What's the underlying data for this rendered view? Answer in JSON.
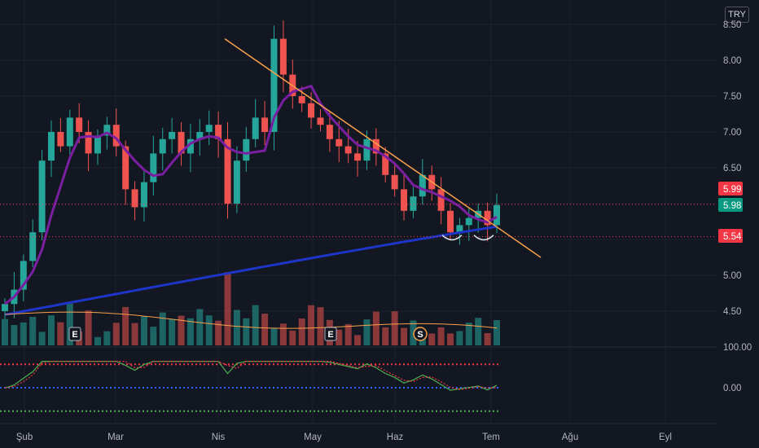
{
  "currency": "TRY",
  "chart_data": {
    "type": "candlestick",
    "y_ticks": [
      "8.50",
      "8.00",
      "7.50",
      "7.00",
      "6.50",
      "6.00",
      "5.50",
      "5.00",
      "4.50"
    ],
    "oscillator_ticks": [
      "100.00",
      "0.00"
    ],
    "x_ticks": [
      "Şub",
      "Mar",
      "Nis",
      "May",
      "Haz",
      "Tem",
      "Ağu",
      "Eyl"
    ],
    "price_tags": [
      {
        "label": "5.99",
        "color": "#f23645"
      },
      {
        "label": "5.98",
        "color": "#089981"
      },
      {
        "label": "5.54",
        "color": "#f23645"
      }
    ],
    "markers": [
      {
        "label": "E",
        "kind": "earnings",
        "month": "Şub"
      },
      {
        "label": "E",
        "kind": "earnings",
        "month": "May"
      },
      {
        "label": "S",
        "kind": "split",
        "month": "Haz"
      }
    ],
    "trendline": {
      "from": {
        "month": "Nis",
        "price": 8.3
      },
      "to": {
        "month": "Tem",
        "price": 5.25
      },
      "color": "#f7a04b"
    },
    "support_line": {
      "price": 5.54
    },
    "resistance_line": {
      "price": 5.99
    },
    "ma_fast_color": "#7b1fa2",
    "ma_slow_color": "#1e35c8",
    "oscillator_levels": [
      80,
      0,
      -80
    ],
    "close": [
      4.6,
      4.8,
      5.2,
      5.6,
      6.6,
      7.0,
      6.8,
      7.2,
      7.0,
      6.7,
      6.95,
      7.1,
      6.8,
      6.2,
      5.95,
      6.3,
      6.7,
      6.9,
      7.0,
      6.7,
      6.9,
      7.0,
      7.1,
      6.9,
      6.0,
      6.6,
      6.9,
      7.2,
      7.0,
      8.3,
      7.8,
      7.5,
      7.4,
      7.2,
      7.1,
      6.9,
      6.8,
      6.7,
      6.6,
      6.9,
      6.7,
      6.4,
      6.2,
      5.9,
      6.1,
      6.4,
      6.2,
      5.9,
      5.6,
      5.7,
      5.8,
      5.9,
      5.7,
      5.98
    ]
  }
}
